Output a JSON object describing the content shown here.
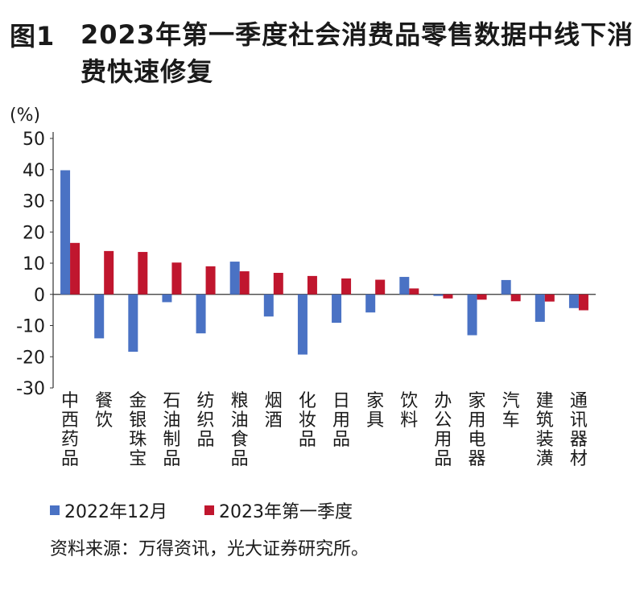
{
  "figure_label": "图1",
  "title": "2023年第一季度社会消费品零售数据中线下消费快速修复",
  "source": "资料来源：万得资讯，光大证券研究所。",
  "colors": {
    "series1": "#4a72c4",
    "series2": "#c0162e",
    "axis": "#333333"
  },
  "chart_data": {
    "type": "bar",
    "unit_label": "(%)",
    "ylim": [
      -30,
      50
    ],
    "yticks": [
      50,
      40,
      30,
      20,
      10,
      0,
      -10,
      -20,
      -30
    ],
    "categories": [
      "中西药品",
      "餐饮",
      "金银珠宝",
      "石油制品",
      "纺织品",
      "粮油食品",
      "烟酒",
      "化妆品",
      "日用品",
      "家具",
      "饮料",
      "办公用品",
      "家用电器",
      "汽车",
      "建筑装潢",
      "通讯器材"
    ],
    "series": [
      {
        "name": "2022年12月",
        "values": [
          39.8,
          -14.1,
          -18.4,
          -2.5,
          -12.5,
          10.5,
          -7.1,
          -19.3,
          -9.1,
          -5.8,
          5.6,
          -0.5,
          -13.1,
          4.6,
          -8.8,
          -4.4
        ]
      },
      {
        "name": "2023年第一季度",
        "values": [
          16.5,
          13.9,
          13.6,
          10.2,
          9.0,
          7.4,
          6.9,
          5.9,
          5.1,
          4.7,
          1.9,
          -1.3,
          -1.7,
          -2.2,
          -2.3,
          -5.1
        ]
      }
    ],
    "grid": false,
    "legend_position": "bottom"
  }
}
